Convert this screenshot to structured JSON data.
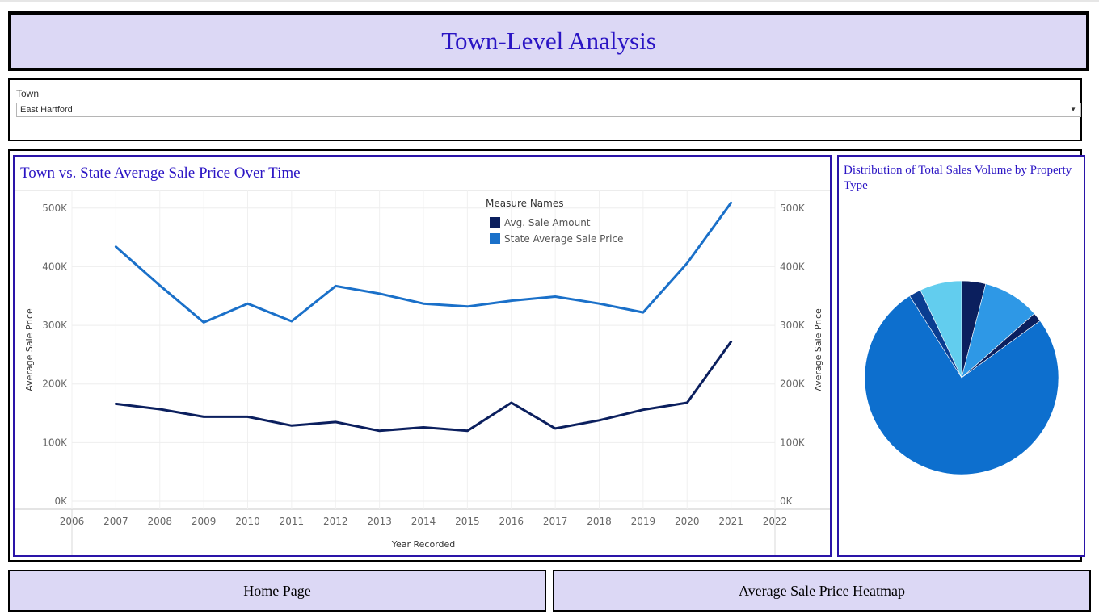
{
  "header": {
    "title": "Town-Level Analysis"
  },
  "filter": {
    "label": "Town",
    "selected": "East Hartford"
  },
  "line_chart_title": "Town vs. State Average Sale Price Over Time",
  "pie_chart_title": "Distribution of Total Sales Volume by Property Type",
  "buttons": {
    "home": "Home Page",
    "heatmap": "Average Sale Price Heatmap"
  },
  "colors": {
    "title_text": "#2a14c4",
    "title_bg": "#dcd8f5",
    "panel_border": "#2a14a8",
    "town_series": "#0b1f5e",
    "state_series": "#1a70c9"
  },
  "chart_data": [
    {
      "type": "line",
      "title": "Town vs. State Average Sale Price Over Time",
      "xlabel": "Year Recorded",
      "ylabel": "Average Sale Price",
      "xlim": [
        2006,
        2022
      ],
      "x_ticks": [
        "2006",
        "2007",
        "2008",
        "2009",
        "2010",
        "2011",
        "2012",
        "2013",
        "2014",
        "2015",
        "2016",
        "2017",
        "2018",
        "2019",
        "2020",
        "2021",
        "2022"
      ],
      "ylim": [
        0,
        530000
      ],
      "y_ticks": [
        0,
        100000,
        200000,
        300000,
        400000,
        500000
      ],
      "y_tick_labels": [
        "0K",
        "100K",
        "200K",
        "300K",
        "400K",
        "500K"
      ],
      "dual_axis": true,
      "grid": true,
      "legend": {
        "title": "Measure Names",
        "position": "top-center"
      },
      "x": [
        2007,
        2008,
        2009,
        2010,
        2011,
        2012,
        2013,
        2014,
        2015,
        2016,
        2017,
        2018,
        2019,
        2020,
        2021
      ],
      "series": [
        {
          "name": "Avg. Sale Amount",
          "color": "#0b1f5e",
          "values": [
            166000,
            157000,
            144000,
            144000,
            129000,
            135000,
            120000,
            126000,
            120000,
            168000,
            124000,
            138000,
            156000,
            168000,
            272000
          ]
        },
        {
          "name": "State Average Sale Price",
          "color": "#1a70c9",
          "values": [
            434000,
            368000,
            305000,
            337000,
            307000,
            367000,
            354000,
            337000,
            332000,
            342000,
            349000,
            337000,
            322000,
            406000,
            509000
          ]
        }
      ]
    },
    {
      "type": "pie",
      "title": "Distribution of Total Sales Volume by Property Type",
      "values": [
        4,
        9.5,
        1.5,
        76,
        2,
        7
      ],
      "colors": [
        "#0b1f5e",
        "#2e98e6",
        "#0b1f5e",
        "#0d6fce",
        "#0a3d91",
        "#62cdee"
      ]
    }
  ]
}
